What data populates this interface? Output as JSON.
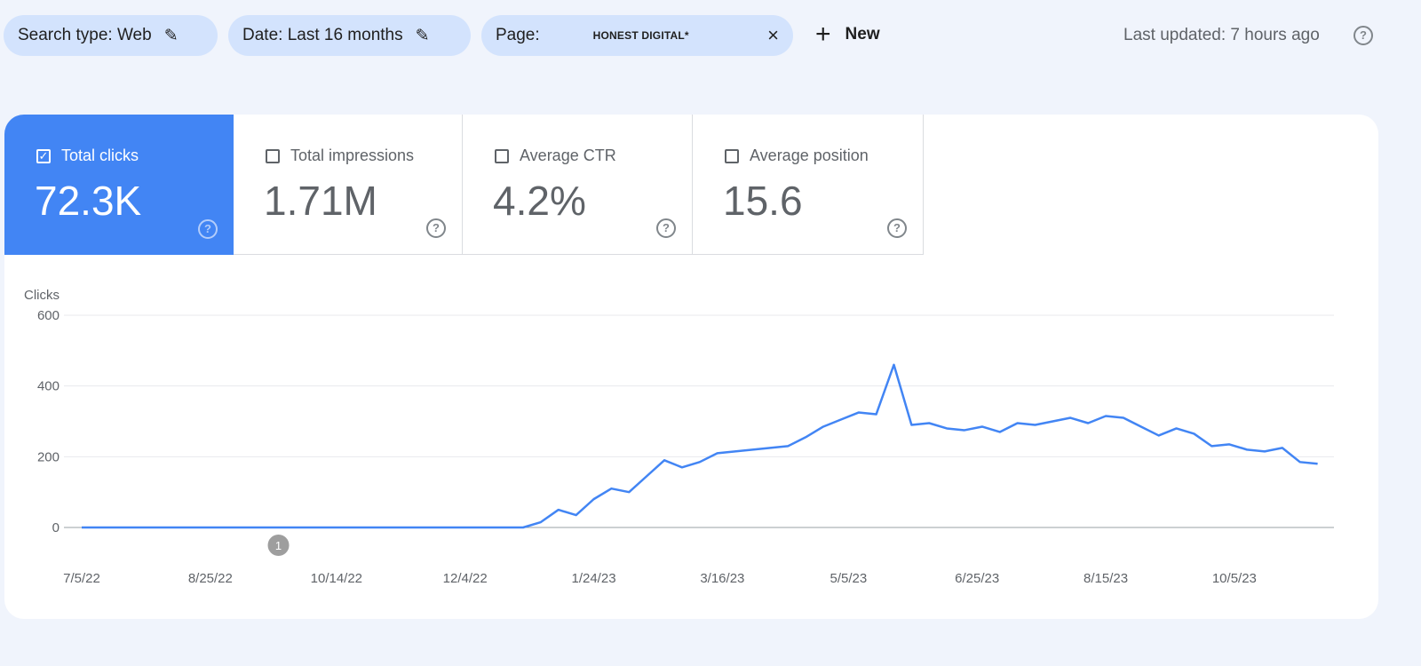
{
  "filters": {
    "search_type": "Search type: Web",
    "date": "Date: Last 16 months",
    "page_label": "Page:",
    "page_value": "HONEST DIGITAL*",
    "new_label": "New",
    "edit_icon": "pencil-icon",
    "close_icon": "close-icon"
  },
  "last_updated": "Last updated: 7 hours ago",
  "metrics": [
    {
      "label": "Total clicks",
      "value": "72.3K",
      "checked": true
    },
    {
      "label": "Total impressions",
      "value": "1.71M",
      "checked": false
    },
    {
      "label": "Average CTR",
      "value": "4.2%",
      "checked": false
    },
    {
      "label": "Average position",
      "value": "15.6",
      "checked": false
    }
  ],
  "colors": {
    "accent": "#4285f4",
    "background": "#f0f4fc",
    "chip": "#d3e3fd"
  },
  "chart_data": {
    "type": "line",
    "ylabel": "Clicks",
    "ylim": [
      0,
      600
    ],
    "yticks": [
      "0",
      "200",
      "400",
      "600"
    ],
    "xticks": [
      "7/5/22",
      "8/25/22",
      "10/14/22",
      "12/4/22",
      "1/24/23",
      "3/16/23",
      "5/5/23",
      "6/25/23",
      "8/15/23",
      "10/5/23"
    ],
    "xtick_days": [
      0,
      51,
      101,
      152,
      203,
      254,
      304,
      355,
      406,
      457
    ],
    "annotation": {
      "label": "1",
      "day": 78
    },
    "series": [
      {
        "name": "Clicks",
        "color": "#4285f4",
        "interval_days": 7,
        "start": "7/5/22",
        "values": [
          0,
          0,
          0,
          0,
          0,
          0,
          0,
          0,
          0,
          0,
          0,
          0,
          0,
          0,
          0,
          0,
          0,
          0,
          0,
          0,
          0,
          0,
          0,
          0,
          0,
          0,
          15,
          50,
          35,
          80,
          110,
          100,
          145,
          190,
          170,
          185,
          210,
          215,
          220,
          225,
          230,
          255,
          285,
          305,
          325,
          320,
          460,
          290,
          295,
          280,
          275,
          285,
          270,
          295,
          290,
          300,
          310,
          295,
          315,
          310,
          285,
          260,
          280,
          265,
          230,
          235,
          220,
          215,
          225,
          185,
          180
        ]
      }
    ]
  }
}
